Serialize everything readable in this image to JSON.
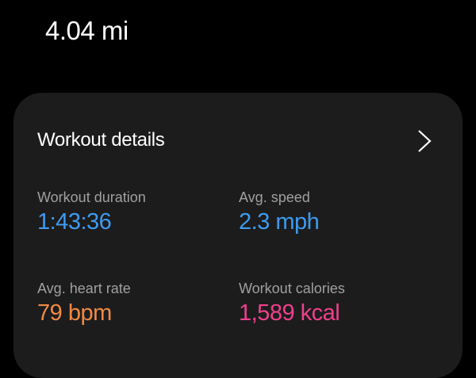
{
  "summary": {
    "distance": "4.04 mi"
  },
  "card": {
    "title": "Workout details",
    "chevron_icon": "chevron-right-icon",
    "stats": [
      {
        "label": "Workout duration",
        "value": "1:43:36",
        "color": "#3e9bf0"
      },
      {
        "label": "Avg. speed",
        "value": "2.3 mph",
        "color": "#3e9bf0"
      },
      {
        "label": "Avg. heart rate",
        "value": "79 bpm",
        "color": "#f08a45"
      },
      {
        "label": "Workout calories",
        "value": "1,589 kcal",
        "color": "#f0408c"
      }
    ]
  }
}
